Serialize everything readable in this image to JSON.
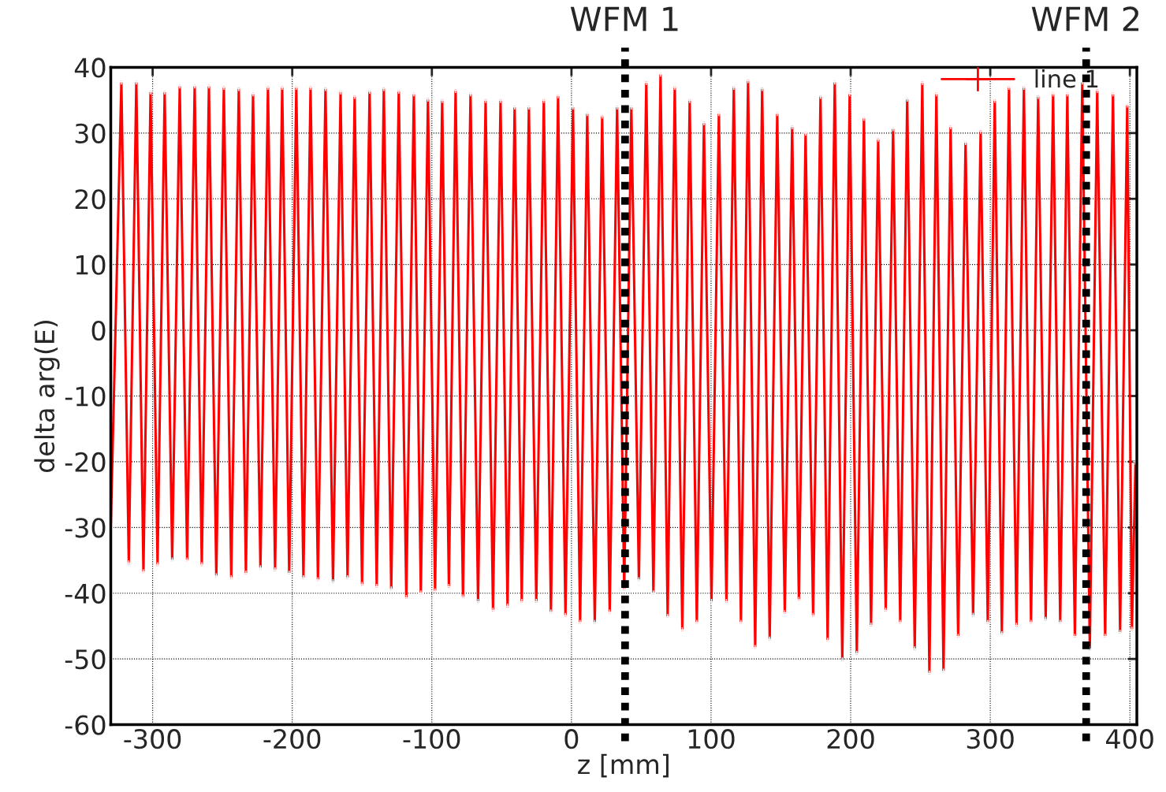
{
  "chart_data": {
    "type": "line",
    "xlabel": "z [mm]",
    "ylabel": "delta arg(E)",
    "xlim": [
      -330,
      405
    ],
    "ylim": [
      -60,
      40
    ],
    "xticks": [
      -300,
      -200,
      -100,
      0,
      100,
      200,
      300,
      400
    ],
    "yticks": [
      -60,
      -50,
      -40,
      -30,
      -20,
      -10,
      0,
      10,
      20,
      30,
      40
    ],
    "grid": true,
    "legend": "top right",
    "marker": "cross",
    "line_style": "solid",
    "ref_lines": [
      {
        "axis": "x",
        "value": 38.4,
        "label": "WFM 1",
        "color": "#000000",
        "line_style": "dotted"
      },
      {
        "axis": "x",
        "value": 368.7,
        "label": "WFM 2",
        "color": "#000000",
        "line_style": "dotted"
      }
    ],
    "series": [
      {
        "name": "line 1",
        "color": "#ff0000",
        "x": [
          -330,
          -322.4,
          -317.1,
          -311.7,
          -306.6,
          -301.5,
          -296.5,
          -291.4,
          -286.0,
          -280.6,
          -275.3,
          -269.9,
          -264.8,
          -259.7,
          -254.4,
          -249.0,
          -243.7,
          -238.3,
          -233.2,
          -228.1,
          -222.8,
          -217.4,
          -212.3,
          -207.2,
          -202.2,
          -197.1,
          -192.0,
          -186.9,
          -181.6,
          -176.2,
          -170.8,
          -165.4,
          -160.4,
          -155.3,
          -150.0,
          -144.6,
          -139.5,
          -134.4,
          -129.1,
          -123.7,
          -118.3,
          -112.9,
          -107.9,
          -102.8,
          -97.7,
          -92.6,
          -87.8,
          -83.0,
          -77.7,
          -72.3,
          -66.9,
          -61.5,
          -56.2,
          -50.8,
          -45.8,
          -40.7,
          -35.6,
          -30.5,
          -25.2,
          -19.8,
          -14.7,
          -9.6,
          -4.3,
          1.1,
          6.2,
          11.3,
          16.7,
          22.0,
          27.4,
          32.7,
          37.8,
          42.9,
          48.3,
          53.6,
          58.7,
          63.8,
          68.9,
          74.0,
          79.4,
          84.7,
          89.8,
          94.9,
          100.3,
          105.6,
          111.0,
          116.3,
          121.4,
          126.5,
          131.6,
          136.6,
          142.0,
          147.4,
          152.8,
          158.1,
          162.9,
          167.7,
          173.1,
          178.4,
          183.5,
          188.6,
          194.0,
          199.3,
          204.4,
          209.5,
          214.6,
          219.7,
          225.1,
          230.4,
          235.5,
          240.5,
          245.9,
          251.3,
          256.4,
          261.4,
          266.5,
          271.6,
          277.0,
          282.3,
          287.7,
          293.1,
          298.2,
          303.2,
          308.3,
          313.4,
          318.8,
          324.1,
          329.2,
          334.3,
          339.7,
          345.0,
          350.1,
          355.2,
          360.6,
          365.9,
          371.3,
          376.6,
          382.3,
          387.9,
          393.0,
          398.1,
          401.5,
          404
        ],
        "values": [
          -30,
          37.8,
          -35.4,
          37.8,
          -36.8,
          36.3,
          -35.7,
          36.3,
          -35,
          37.2,
          -35,
          37.2,
          -35.7,
          37.2,
          -37.4,
          37,
          -37.7,
          36.8,
          -37,
          36,
          -36.2,
          37,
          -36.5,
          37,
          -37,
          37,
          -37.7,
          37,
          -38,
          36.8,
          -38.3,
          36.3,
          -37.7,
          35.6,
          -38.7,
          36.4,
          -39,
          36.8,
          -39.4,
          36.4,
          -40.7,
          36,
          -40,
          35.2,
          -39.7,
          35,
          -39,
          36.5,
          -40.6,
          36,
          -41.3,
          35,
          -42.6,
          35,
          -42,
          34,
          -41.3,
          34,
          -41.3,
          35,
          -42.9,
          35.7,
          -43.4,
          34,
          -44.5,
          33,
          -44.5,
          32.6,
          -42.9,
          34,
          -39.4,
          34,
          -38,
          37.7,
          -40,
          39,
          -43.6,
          37,
          -45.6,
          35,
          -44.5,
          31.6,
          -41.3,
          33,
          -41.3,
          37,
          -44.5,
          38,
          -48.3,
          36.8,
          -47,
          33,
          -43,
          31,
          -41,
          30,
          -43.4,
          35.6,
          -47.2,
          37.8,
          -50.2,
          36,
          -49.2,
          32.3,
          -44.9,
          29.1,
          -42.6,
          30.7,
          -44.5,
          35.2,
          -48.5,
          37.7,
          -52.2,
          36,
          -51.9,
          31,
          -46.6,
          28.6,
          -43.4,
          30.3,
          -44.5,
          35,
          -46.2,
          37,
          -44.9,
          37,
          -44.5,
          35.6,
          -44,
          36,
          -44.5,
          36,
          -46.6,
          37.8,
          -48.5,
          36.5,
          -46.6,
          36,
          -46,
          34.3,
          -45.5,
          -20
        ]
      }
    ]
  }
}
